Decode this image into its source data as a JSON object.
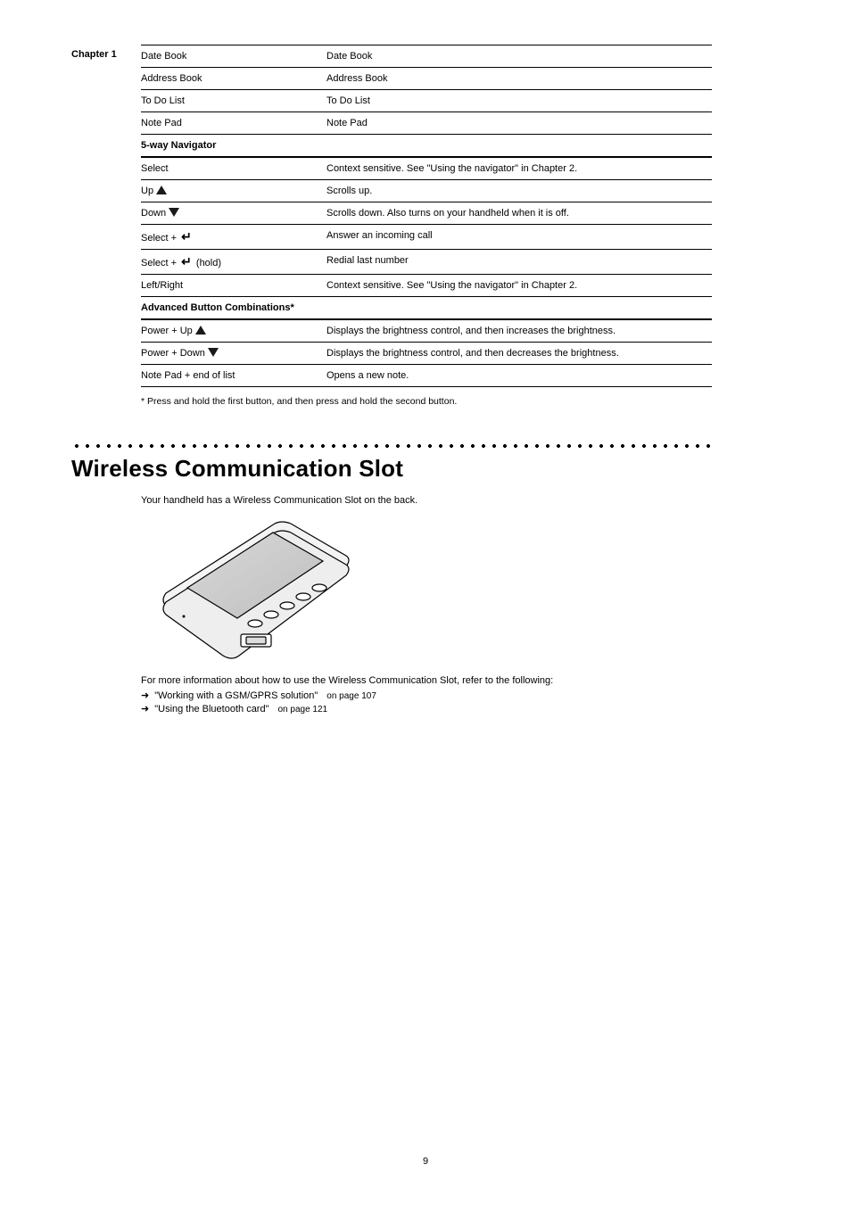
{
  "sidebar": {
    "chapter_label": "Chapter 1"
  },
  "table": {
    "rows": [
      {
        "k": "Date Book",
        "v": "Date Book",
        "cls": ""
      },
      {
        "k": "Address Book",
        "v": "Address Book",
        "cls": ""
      },
      {
        "k": "To Do List",
        "v": "To Do List",
        "cls": ""
      },
      {
        "k": "Note Pad",
        "v": "Note Pad",
        "cls": ""
      },
      {
        "k": "5-way Navigator",
        "v": "",
        "cls": "sect"
      },
      {
        "k": "Select",
        "v": "Context sensitive. See \"Using the navigator\" in Chapter 2.",
        "cls": ""
      },
      {
        "k": "Up @triup@",
        "v": "Scrolls up.",
        "cls": ""
      },
      {
        "k": "Down @tridn@",
        "v": "Scrolls down. Also turns on your handheld when it is off.",
        "cls": ""
      },
      {
        "k": "Select + @enter@",
        "v": "Answer an incoming call",
        "cls": ""
      },
      {
        "k": "Select + @enter@ (hold)",
        "v": "Redial last number",
        "cls": ""
      },
      {
        "k": "Left/Right",
        "v": "Context sensitive. See \"Using the navigator\" in Chapter 2.",
        "cls": ""
      },
      {
        "k": "Advanced Button Combinations*",
        "v": "",
        "cls": "sect"
      },
      {
        "k": "Power + Up @triup@",
        "v": "Displays the brightness control, and then increases the brightness.",
        "cls": ""
      },
      {
        "k": "Power + Down @tridn@",
        "v": "Displays the brightness control, and then decreases the brightness.",
        "cls": ""
      },
      {
        "k": "Note Pad + end of list",
        "v": "Opens a new note.",
        "cls": ""
      }
    ],
    "footnote": "* Press and hold the first button, and then press and hold the second button."
  },
  "section_title": "Wireless Communication Slot",
  "figure": {
    "caption": "Your handheld has a Wireless Communication Slot on the back.",
    "howto_text": "For more information about how to use the Wireless Communication Slot, refer to the following:",
    "links": [
      {
        "label": "\"Working with a GSM/GPRS solution\"",
        "page": "on page 107"
      },
      {
        "label": "\"Using the Bluetooth card\"",
        "page": "on page 121"
      }
    ]
  },
  "footer": {
    "page_number": "9"
  }
}
